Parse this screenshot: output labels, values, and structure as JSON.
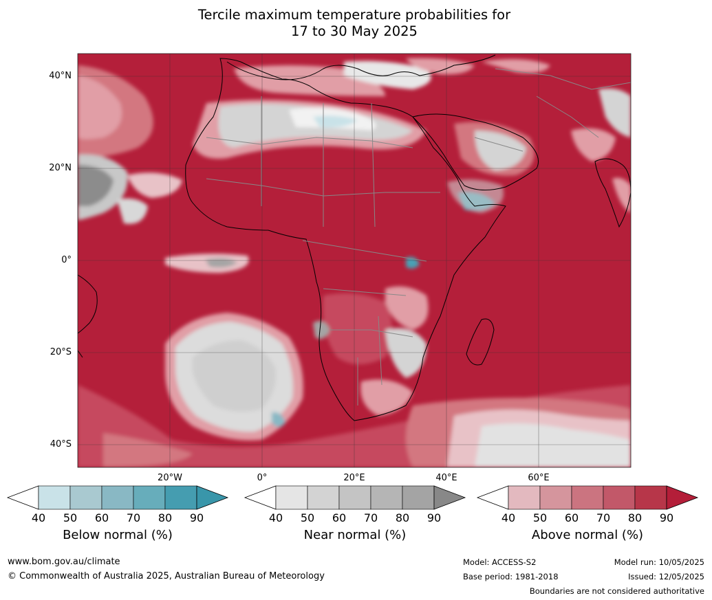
{
  "title": {
    "line1": "Tercile maximum temperature probabilities for",
    "line2": "17 to 30 May 2025"
  },
  "map": {
    "lat_labels": [
      "40°N",
      "20°N",
      "0°",
      "20°S",
      "40°S"
    ],
    "lon_labels": [
      "20°W",
      "0°",
      "20°E",
      "40°E",
      "60°E"
    ],
    "colors": {
      "ocean_base": "#c3304a",
      "above_90": "#b41f3a",
      "above_80": "#c64a5e",
      "above_70": "#d37780",
      "above_60": "#e19ea6",
      "above_50": "#eec6cb",
      "near_gray": "#cfcfcf",
      "near_dark": "#8c8c8c",
      "below_blue": "#4aa0b4",
      "coast": "#000000",
      "border": "#888888"
    }
  },
  "colorbars": [
    {
      "name": "Below normal (%)",
      "ticks": [
        "40",
        "50",
        "60",
        "70",
        "80",
        "90"
      ],
      "colors": [
        "#c9e2e8",
        "#a9c9d0",
        "#89b8c4",
        "#67adbb",
        "#459db0"
      ],
      "over_color": "#3996aa"
    },
    {
      "name": "Near normal (%)",
      "ticks": [
        "40",
        "50",
        "60",
        "70",
        "80",
        "90"
      ],
      "colors": [
        "#e5e5e5",
        "#d3d3d3",
        "#c4c4c4",
        "#b5b5b5",
        "#a4a4a4"
      ],
      "over_color": "#888888"
    },
    {
      "name": "Above normal (%)",
      "ticks": [
        "40",
        "50",
        "60",
        "70",
        "80",
        "90"
      ],
      "colors": [
        "#e3b9bf",
        "#d5959d",
        "#cb7480",
        "#c25869",
        "#b73649"
      ],
      "over_color": "#b41e39"
    }
  ],
  "footer": {
    "url": "www.bom.gov.au/climate",
    "copyright": "© Commonwealth of Australia 2025, Australian Bureau of Meteorology",
    "model": "Model: ACCESS-S2",
    "base_period": "Base period: 1981-2018",
    "model_run": "Model run: 10/05/2025",
    "issued": "Issued: 12/05/2025",
    "disclaimer": "Boundaries are not considered authoritative"
  }
}
